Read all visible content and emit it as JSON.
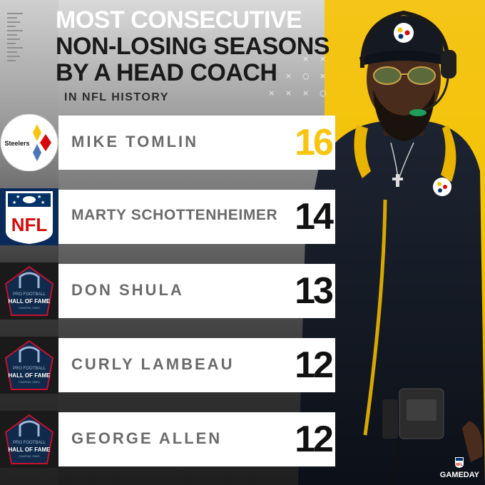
{
  "header": {
    "title_line1": "MOST CONSECUTIVE",
    "title_line2": "NON-LOSING SEASONS",
    "title_line3": "BY A HEAD COACH",
    "subtitle": "IN NFL HISTORY"
  },
  "rankings": [
    {
      "logo": "steelers-logo",
      "logo_text": "Steelers",
      "name": "MIKE TOMLIN",
      "seasons": "16",
      "number_color": "#f7c40e"
    },
    {
      "logo": "nfl-shield-logo",
      "logo_text": "NFL",
      "name": "MARTY SCHOTTENHEIMER",
      "seasons": "14",
      "number_color": "#111111"
    },
    {
      "logo": "hall-of-fame-logo",
      "logo_text": "HALL OF FAME",
      "name": "DON SHULA",
      "seasons": "13",
      "number_color": "#111111"
    },
    {
      "logo": "hall-of-fame-logo",
      "logo_text": "HALL OF FAME",
      "name": "CURLY LAMBEAU",
      "seasons": "12",
      "number_color": "#111111"
    },
    {
      "logo": "hall-of-fame-logo",
      "logo_text": "HALL OF FAME",
      "name": "GEORGE ALLEN",
      "seasons": "12",
      "number_color": "#111111"
    }
  ],
  "hof_logo": {
    "line1": "PRO FOOTBALL",
    "line2": "HALL OF FAME",
    "line3": "CANTON, OHIO"
  },
  "branding": {
    "label": "GAMEDAY",
    "shield_text": "NFL"
  },
  "colors": {
    "accent_yellow": "#f2c200",
    "steelers_gold": "#f7c40e",
    "nfl_blue": "#013369",
    "nfl_red": "#d50a0a",
    "hof_navy": "#0f2a4a"
  }
}
